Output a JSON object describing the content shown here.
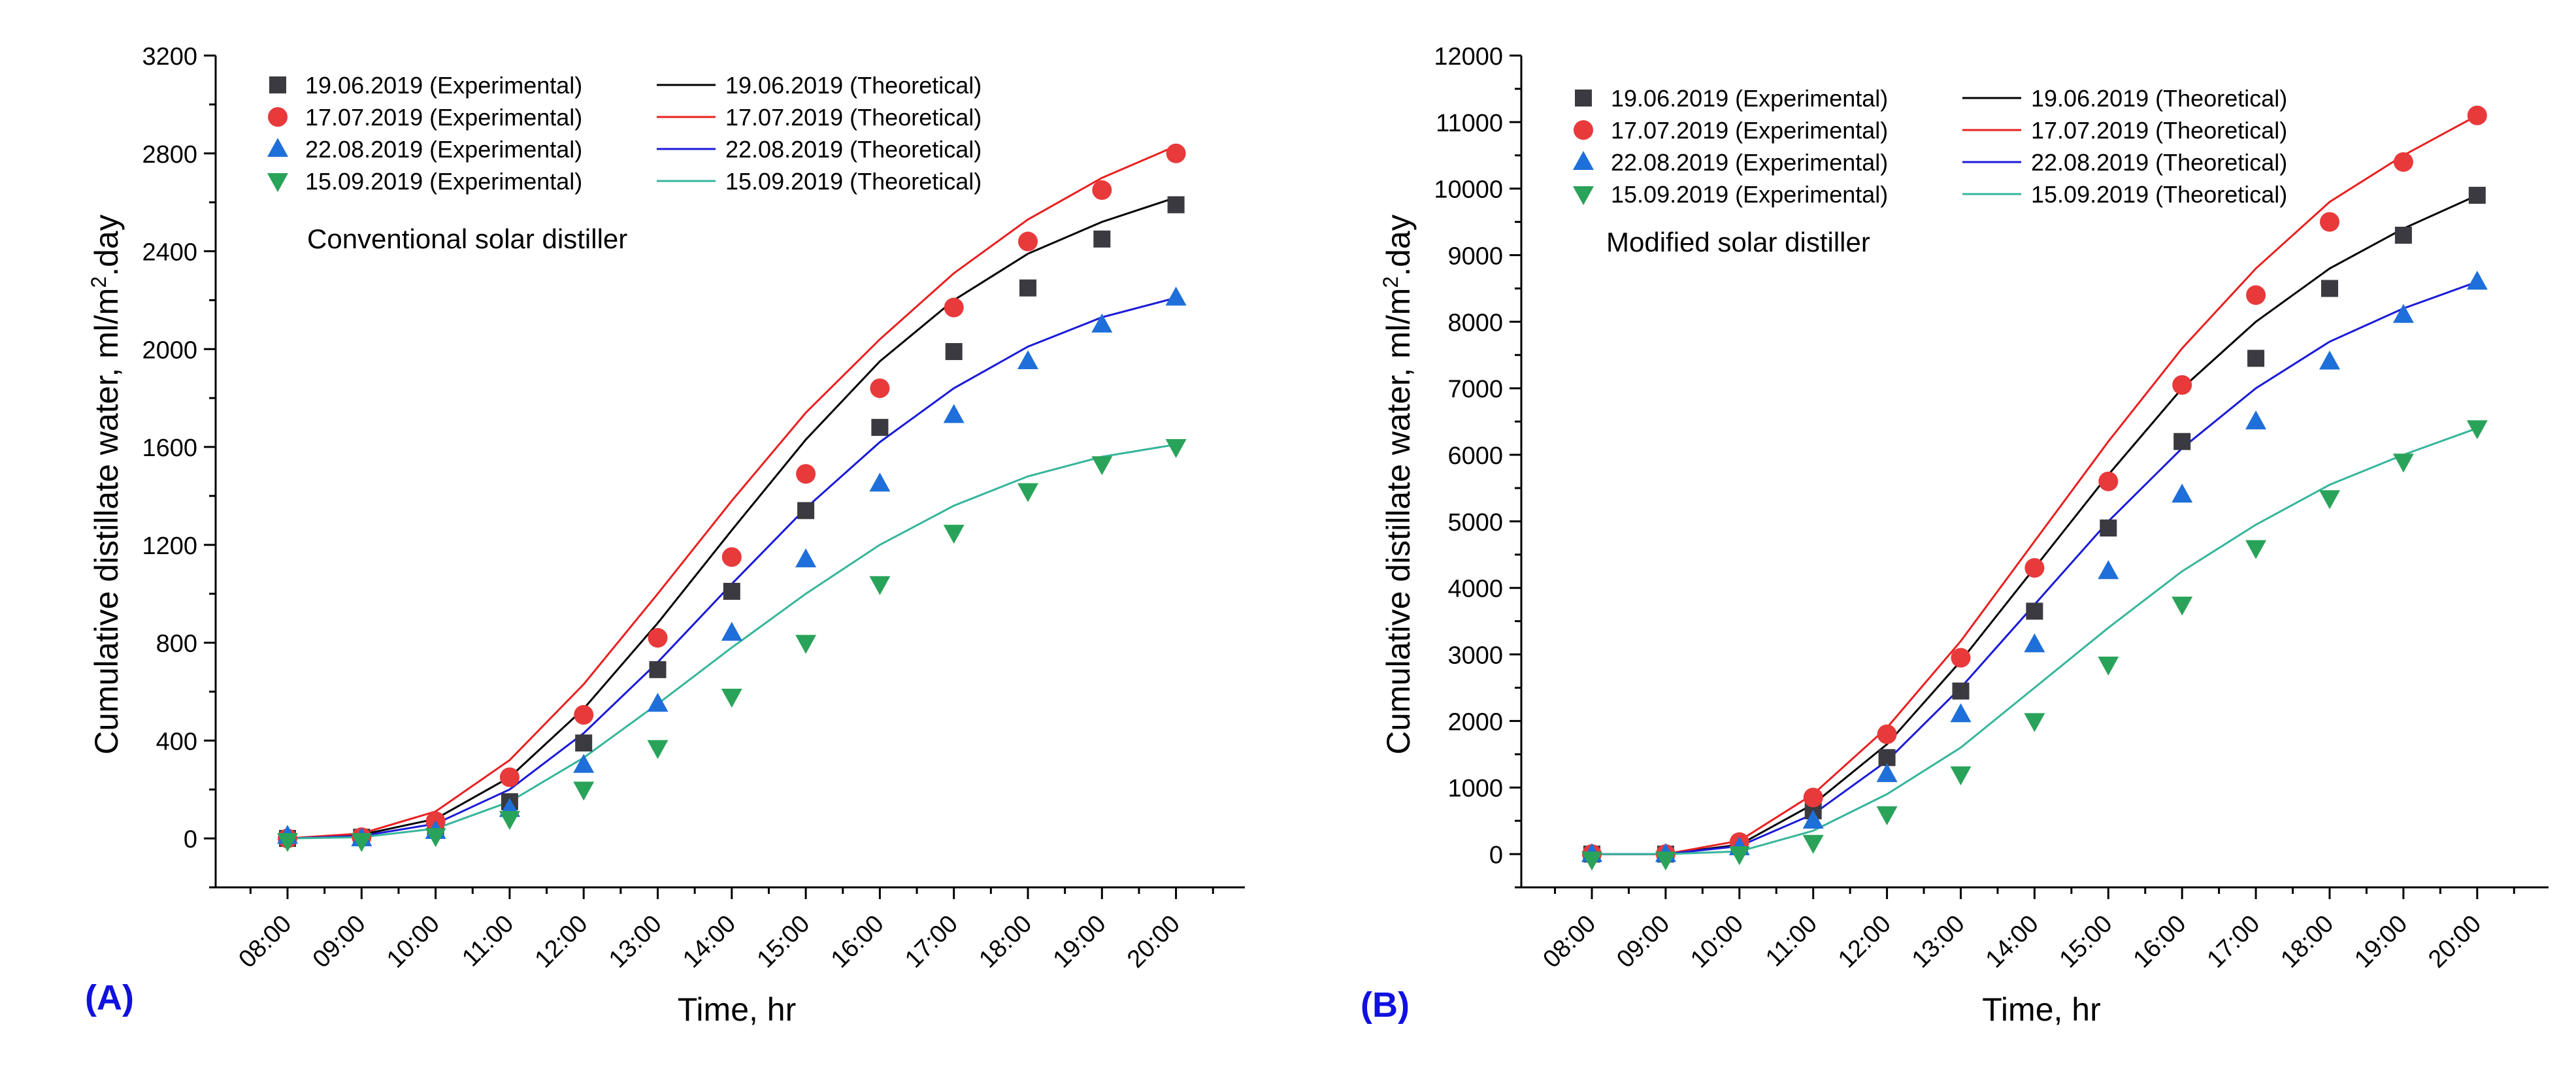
{
  "chart_data": [
    {
      "panel_label": "(A)",
      "type": "scatter",
      "annotation": "Conventional solar distiller",
      "xlabel": "Time, hr",
      "ylabel_main": "Cumulative distillate water, ml/m",
      "ylabel_sup": "2",
      "ylabel_tail": ".day",
      "categories": [
        "08:00",
        "09:00",
        "10:00",
        "11:00",
        "12:00",
        "13:00",
        "14:00",
        "15:00",
        "16:00",
        "17:00",
        "18:00",
        "19:00",
        "20:00"
      ],
      "ylim": [
        -200,
        3200
      ],
      "yticks": [
        0,
        400,
        800,
        1200,
        1600,
        2000,
        2400,
        2800,
        3200
      ],
      "grid": false,
      "legend_position": "top-left",
      "series": [
        {
          "name": "19.06.2019 (Experimental)",
          "marker": "square",
          "color": "#3a3a40",
          "values": [
            0,
            5,
            40,
            150,
            390,
            690,
            1010,
            1340,
            1680,
            1990,
            2250,
            2450,
            2590
          ]
        },
        {
          "name": "17.07.2019 (Experimental)",
          "marker": "circle",
          "color": "#e8393b",
          "values": [
            0,
            5,
            70,
            250,
            505,
            820,
            1150,
            1490,
            1840,
            2170,
            2440,
            2650,
            2800
          ]
        },
        {
          "name": "22.08.2019 (Experimental)",
          "marker": "triangle-up",
          "color": "#1e6fd9",
          "values": [
            10,
            0,
            30,
            120,
            300,
            550,
            840,
            1140,
            1450,
            1730,
            1950,
            2100,
            2210
          ]
        },
        {
          "name": "15.09.2019 (Experimental)",
          "marker": "triangle-down",
          "color": "#2aa35a",
          "values": [
            -10,
            -10,
            10,
            80,
            200,
            370,
            580,
            800,
            1040,
            1250,
            1420,
            1530,
            1600
          ]
        },
        {
          "name": "19.06.2019 (Theoretical)",
          "line": true,
          "color": "#000000",
          "values": [
            0,
            15,
            80,
            250,
            530,
            880,
            1260,
            1630,
            1950,
            2200,
            2390,
            2520,
            2620
          ]
        },
        {
          "name": "17.07.2019 (Theoretical)",
          "line": true,
          "color": "#e82020",
          "values": [
            0,
            20,
            110,
            320,
            630,
            1000,
            1380,
            1740,
            2040,
            2310,
            2530,
            2700,
            2830
          ]
        },
        {
          "name": "22.08.2019 (Theoretical)",
          "line": true,
          "color": "#1a1ad8",
          "values": [
            0,
            10,
            60,
            200,
            430,
            720,
            1040,
            1350,
            1620,
            1840,
            2010,
            2130,
            2210
          ]
        },
        {
          "name": "15.09.2019 (Theoretical)",
          "line": true,
          "color": "#36b59b",
          "values": [
            0,
            5,
            40,
            150,
            330,
            550,
            780,
            1000,
            1200,
            1360,
            1480,
            1560,
            1610
          ]
        }
      ]
    },
    {
      "panel_label": "(B)",
      "type": "scatter",
      "annotation": "Modified solar distiller",
      "xlabel": "Time, hr",
      "ylabel_main": "Cumulative distillate water, ml/m",
      "ylabel_sup": "2",
      "ylabel_tail": ".day",
      "categories": [
        "08:00",
        "09:00",
        "10:00",
        "11:00",
        "12:00",
        "13:00",
        "14:00",
        "15:00",
        "16:00",
        "17:00",
        "18:00",
        "19:00",
        "20:00"
      ],
      "ylim": [
        -500,
        12000
      ],
      "yticks": [
        0,
        1000,
        2000,
        3000,
        4000,
        5000,
        6000,
        7000,
        8000,
        9000,
        10000,
        11000,
        12000
      ],
      "grid": false,
      "legend_position": "top-left",
      "series": [
        {
          "name": "19.06.2019 (Experimental)",
          "marker": "square",
          "color": "#3a3a40",
          "values": [
            0,
            0,
            120,
            650,
            1450,
            2450,
            3650,
            4900,
            6200,
            7450,
            8500,
            9300,
            9900
          ]
        },
        {
          "name": "17.07.2019 (Experimental)",
          "marker": "circle",
          "color": "#e8393b",
          "values": [
            0,
            0,
            180,
            850,
            1800,
            2950,
            4300,
            5600,
            7050,
            8400,
            9500,
            10400,
            11100
          ]
        },
        {
          "name": "22.08.2019 (Experimental)",
          "marker": "triangle-up",
          "color": "#1e6fd9",
          "values": [
            0,
            0,
            100,
            500,
            1200,
            2100,
            3150,
            4250,
            5400,
            6500,
            7400,
            8100,
            8600
          ]
        },
        {
          "name": "15.09.2019 (Experimental)",
          "marker": "triangle-down",
          "color": "#2aa35a",
          "values": [
            -80,
            -80,
            0,
            170,
            600,
            1200,
            2000,
            2850,
            3750,
            4600,
            5350,
            5900,
            6400
          ]
        },
        {
          "name": "19.06.2019 (Theoretical)",
          "line": true,
          "color": "#000000",
          "values": [
            0,
            0,
            140,
            750,
            1650,
            2900,
            4300,
            5700,
            7000,
            8000,
            8800,
            9400,
            9900
          ]
        },
        {
          "name": "17.07.2019 (Theoretical)",
          "line": true,
          "color": "#e82020",
          "values": [
            0,
            0,
            200,
            900,
            1900,
            3200,
            4700,
            6200,
            7600,
            8800,
            9800,
            10500,
            11100
          ]
        },
        {
          "name": "22.08.2019 (Theoretical)",
          "line": true,
          "color": "#1a1ad8",
          "values": [
            0,
            0,
            120,
            600,
            1400,
            2500,
            3750,
            5000,
            6100,
            7000,
            7700,
            8200,
            8600
          ]
        },
        {
          "name": "15.09.2019 (Theoretical)",
          "line": true,
          "color": "#36b59b",
          "values": [
            0,
            0,
            40,
            350,
            900,
            1600,
            2500,
            3400,
            4250,
            4950,
            5550,
            6000,
            6400
          ]
        }
      ]
    }
  ]
}
